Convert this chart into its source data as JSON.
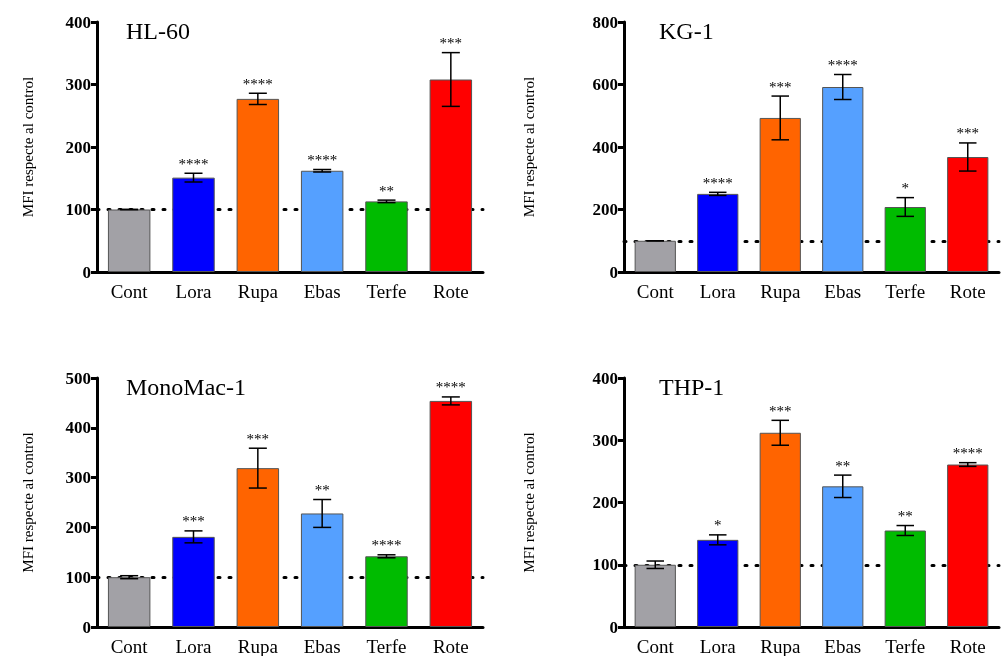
{
  "chart_data": [
    {
      "type": "bar",
      "title": "HL-60",
      "ylabel": "MFI respecte al control",
      "categories": [
        "Cont",
        "Lora",
        "Rupa",
        "Ebas",
        "Terfe",
        "Rote"
      ],
      "values": [
        100,
        151,
        277,
        162,
        113,
        308
      ],
      "errors": [
        0,
        7,
        9,
        2,
        2,
        43
      ],
      "colors": [
        "#a2a1a6",
        "#0000ff",
        "#ff6400",
        "#55a0ff",
        "#00bb00",
        "#ff0000"
      ],
      "ylim": [
        0,
        400
      ],
      "yticks": [
        0,
        100,
        200,
        300,
        400
      ],
      "grid": false,
      "ref_lines": [
        {
          "axis": "y",
          "value": 100,
          "color": "#000000",
          "line_style": "dotted"
        }
      ],
      "annotations": [
        {
          "text": "****",
          "x": "Lora",
          "y": 158
        },
        {
          "text": "****",
          "x": "Rupa",
          "y": 286
        },
        {
          "text": "****",
          "x": "Ebas",
          "y": 164
        },
        {
          "text": "**",
          "x": "Terfe",
          "y": 115
        },
        {
          "text": "***",
          "x": "Rote",
          "y": 351
        }
      ]
    },
    {
      "type": "bar",
      "title": "KG-1",
      "ylabel": "MFI respecte al control",
      "categories": [
        "Cont",
        "Lora",
        "Rupa",
        "Ebas",
        "Terfe",
        "Rote"
      ],
      "values": [
        100,
        250,
        493,
        592,
        208,
        368
      ],
      "errors": [
        0,
        5,
        70,
        40,
        30,
        45
      ],
      "colors": [
        "#a2a1a6",
        "#0000ff",
        "#ff6400",
        "#55a0ff",
        "#00bb00",
        "#ff0000"
      ],
      "ylim": [
        0,
        800
      ],
      "yticks": [
        0,
        200,
        400,
        600,
        800
      ],
      "grid": false,
      "ref_lines": [
        {
          "axis": "y",
          "value": 100,
          "color": "#000000",
          "line_style": "dotted"
        }
      ],
      "annotations": [
        {
          "text": "****",
          "x": "Lora",
          "y": 255
        },
        {
          "text": "***",
          "x": "Rupa",
          "y": 563
        },
        {
          "text": "****",
          "x": "Ebas",
          "y": 632
        },
        {
          "text": "*",
          "x": "Terfe",
          "y": 238
        },
        {
          "text": "***",
          "x": "Rote",
          "y": 413
        }
      ]
    },
    {
      "type": "bar",
      "title": "MonoMac-1",
      "ylabel": "MFI respecte al control",
      "categories": [
        "Cont",
        "Lora",
        "Rupa",
        "Ebas",
        "Terfe",
        "Rote"
      ],
      "values": [
        100,
        181,
        319,
        228,
        142,
        454
      ],
      "errors": [
        3,
        12,
        40,
        28,
        3,
        8
      ],
      "colors": [
        "#a2a1a6",
        "#0000ff",
        "#ff6400",
        "#55a0ff",
        "#00bb00",
        "#ff0000"
      ],
      "ylim": [
        0,
        500
      ],
      "yticks": [
        0,
        100,
        200,
        300,
        400,
        500
      ],
      "grid": false,
      "ref_lines": [
        {
          "axis": "y",
          "value": 100,
          "color": "#000000",
          "line_style": "dotted"
        }
      ],
      "annotations": [
        {
          "text": "***",
          "x": "Lora",
          "y": 193
        },
        {
          "text": "***",
          "x": "Rupa",
          "y": 359
        },
        {
          "text": "**",
          "x": "Ebas",
          "y": 256
        },
        {
          "text": "****",
          "x": "Terfe",
          "y": 145
        },
        {
          "text": "****",
          "x": "Rote",
          "y": 462
        }
      ]
    },
    {
      "type": "bar",
      "title": "THP-1",
      "ylabel": "MFI respecte al control",
      "categories": [
        "Cont",
        "Lora",
        "Rupa",
        "Ebas",
        "Terfe",
        "Rote"
      ],
      "values": [
        100,
        140,
        312,
        226,
        155,
        261
      ],
      "errors": [
        6,
        8,
        20,
        18,
        8,
        3
      ],
      "colors": [
        "#a2a1a6",
        "#0000ff",
        "#ff6400",
        "#55a0ff",
        "#00bb00",
        "#ff0000"
      ],
      "ylim": [
        0,
        400
      ],
      "yticks": [
        0,
        100,
        200,
        300,
        400
      ],
      "grid": false,
      "ref_lines": [
        {
          "axis": "y",
          "value": 100,
          "color": "#000000",
          "line_style": "dotted"
        }
      ],
      "annotations": [
        {
          "text": "*",
          "x": "Lora",
          "y": 148
        },
        {
          "text": "***",
          "x": "Rupa",
          "y": 332
        },
        {
          "text": "**",
          "x": "Ebas",
          "y": 244
        },
        {
          "text": "**",
          "x": "Terfe",
          "y": 163
        },
        {
          "text": "****",
          "x": "Rote",
          "y": 264
        }
      ]
    }
  ]
}
